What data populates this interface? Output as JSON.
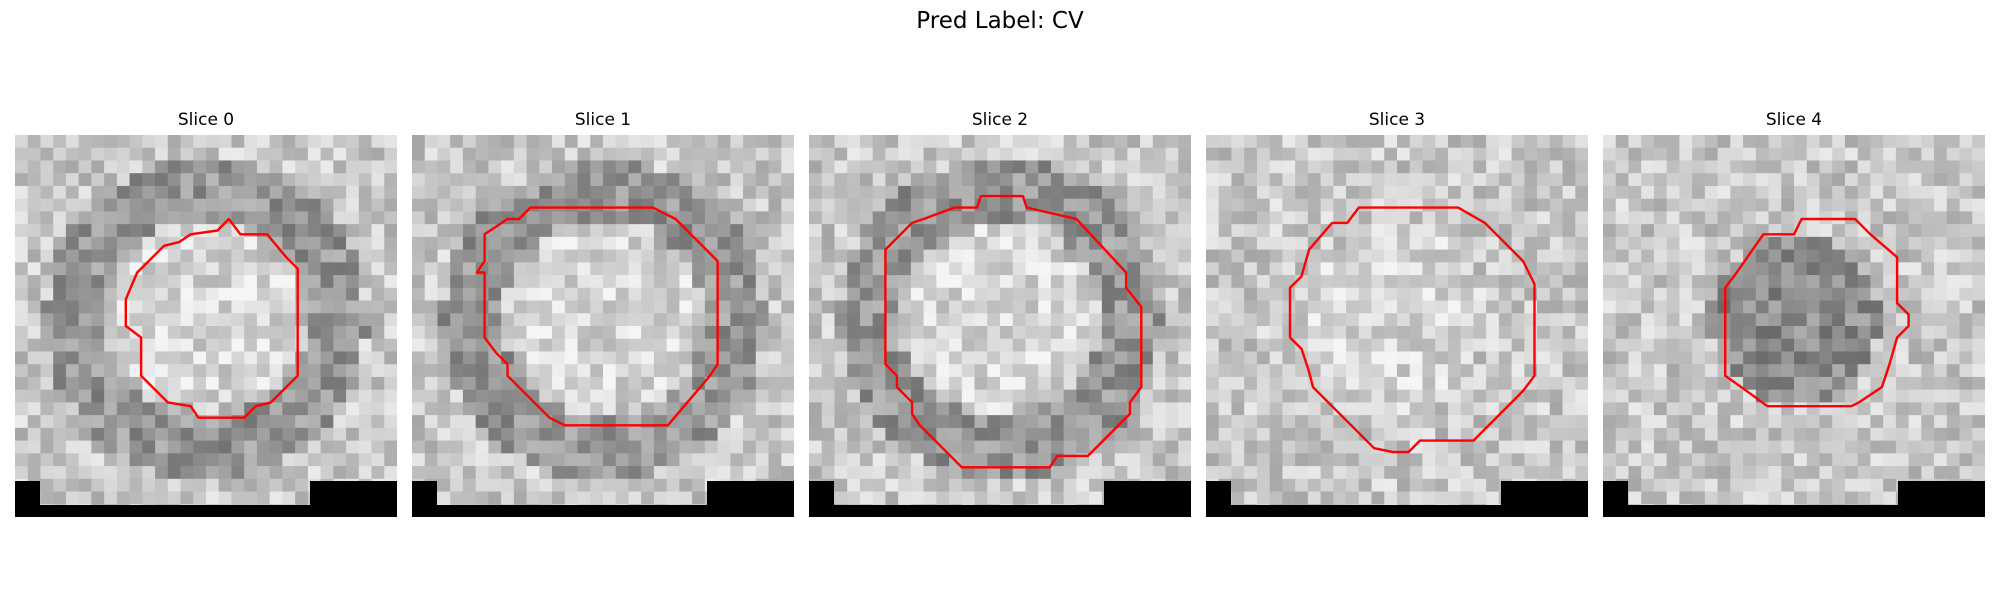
{
  "figure": {
    "title": "Pred Label: CV"
  },
  "panels": [
    {
      "title": "Slice 0",
      "contour_color": "#ff0000",
      "ring": "dark",
      "interior": "light",
      "contour": [
        [
          0.56,
          0.22
        ],
        [
          0.59,
          0.26
        ],
        [
          0.66,
          0.26
        ],
        [
          0.71,
          0.32
        ],
        [
          0.74,
          0.35
        ],
        [
          0.74,
          0.63
        ],
        [
          0.67,
          0.7
        ],
        [
          0.63,
          0.71
        ],
        [
          0.6,
          0.74
        ],
        [
          0.48,
          0.74
        ],
        [
          0.46,
          0.71
        ],
        [
          0.4,
          0.7
        ],
        [
          0.33,
          0.63
        ],
        [
          0.33,
          0.53
        ],
        [
          0.29,
          0.5
        ],
        [
          0.29,
          0.43
        ],
        [
          0.32,
          0.36
        ],
        [
          0.39,
          0.29
        ],
        [
          0.43,
          0.28
        ],
        [
          0.46,
          0.26
        ],
        [
          0.53,
          0.25
        ]
      ]
    },
    {
      "title": "Slice 1",
      "contour_color": "#ff0000",
      "ring": "dark",
      "interior": "light",
      "contour": [
        [
          0.31,
          0.19
        ],
        [
          0.63,
          0.19
        ],
        [
          0.69,
          0.22
        ],
        [
          0.8,
          0.33
        ],
        [
          0.8,
          0.6
        ],
        [
          0.78,
          0.63
        ],
        [
          0.67,
          0.76
        ],
        [
          0.4,
          0.76
        ],
        [
          0.36,
          0.74
        ],
        [
          0.25,
          0.63
        ],
        [
          0.25,
          0.6
        ],
        [
          0.22,
          0.57
        ],
        [
          0.19,
          0.53
        ],
        [
          0.19,
          0.36
        ],
        [
          0.17,
          0.36
        ],
        [
          0.19,
          0.33
        ],
        [
          0.19,
          0.26
        ],
        [
          0.25,
          0.22
        ],
        [
          0.28,
          0.22
        ]
      ]
    },
    {
      "title": "Slice 2",
      "contour_color": "#ff0000",
      "ring": "dark",
      "interior": "light",
      "contour": [
        [
          0.45,
          0.16
        ],
        [
          0.56,
          0.16
        ],
        [
          0.57,
          0.19
        ],
        [
          0.7,
          0.22
        ],
        [
          0.83,
          0.36
        ],
        [
          0.83,
          0.4
        ],
        [
          0.87,
          0.45
        ],
        [
          0.87,
          0.66
        ],
        [
          0.84,
          0.7
        ],
        [
          0.84,
          0.73
        ],
        [
          0.74,
          0.83
        ],
        [
          0.73,
          0.84
        ],
        [
          0.65,
          0.84
        ],
        [
          0.63,
          0.87
        ],
        [
          0.4,
          0.87
        ],
        [
          0.29,
          0.76
        ],
        [
          0.27,
          0.73
        ],
        [
          0.27,
          0.7
        ],
        [
          0.23,
          0.66
        ],
        [
          0.23,
          0.63
        ],
        [
          0.2,
          0.6
        ],
        [
          0.2,
          0.3
        ],
        [
          0.27,
          0.23
        ],
        [
          0.3,
          0.22
        ],
        [
          0.38,
          0.19
        ],
        [
          0.44,
          0.19
        ]
      ]
    },
    {
      "title": "Slice 3",
      "contour_color": "#ff0000",
      "ring": "light",
      "interior": "light",
      "contour": [
        [
          0.4,
          0.19
        ],
        [
          0.66,
          0.19
        ],
        [
          0.73,
          0.23
        ],
        [
          0.83,
          0.33
        ],
        [
          0.86,
          0.39
        ],
        [
          0.86,
          0.63
        ],
        [
          0.83,
          0.67
        ],
        [
          0.7,
          0.8
        ],
        [
          0.68,
          0.8
        ],
        [
          0.56,
          0.8
        ],
        [
          0.53,
          0.83
        ],
        [
          0.49,
          0.83
        ],
        [
          0.44,
          0.82
        ],
        [
          0.28,
          0.66
        ],
        [
          0.27,
          0.62
        ],
        [
          0.25,
          0.56
        ],
        [
          0.22,
          0.53
        ],
        [
          0.22,
          0.4
        ],
        [
          0.25,
          0.37
        ],
        [
          0.27,
          0.3
        ],
        [
          0.33,
          0.23
        ],
        [
          0.37,
          0.23
        ]
      ]
    },
    {
      "title": "Slice 4",
      "contour_color": "#ff0000",
      "ring": "light",
      "interior": "dark",
      "contour": [
        [
          0.52,
          0.22
        ],
        [
          0.66,
          0.22
        ],
        [
          0.7,
          0.26
        ],
        [
          0.77,
          0.32
        ],
        [
          0.77,
          0.44
        ],
        [
          0.8,
          0.47
        ],
        [
          0.8,
          0.5
        ],
        [
          0.77,
          0.53
        ],
        [
          0.75,
          0.6
        ],
        [
          0.73,
          0.66
        ],
        [
          0.67,
          0.7
        ],
        [
          0.65,
          0.71
        ],
        [
          0.43,
          0.71
        ],
        [
          0.39,
          0.68
        ],
        [
          0.32,
          0.63
        ],
        [
          0.32,
          0.4
        ],
        [
          0.35,
          0.36
        ],
        [
          0.42,
          0.26
        ],
        [
          0.5,
          0.26
        ]
      ]
    }
  ]
}
